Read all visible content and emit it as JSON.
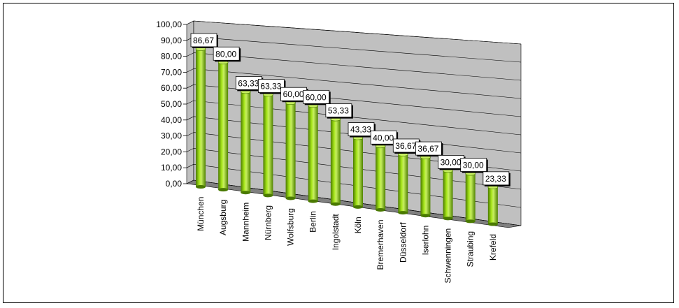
{
  "chart_data": {
    "type": "bar",
    "categories": [
      "München",
      "Augsburg",
      "Mannheim",
      "Nürnberg",
      "Wolfsburg",
      "Berlin",
      "Ingolstadt",
      "Köln",
      "Bremerhaven",
      "Düsseldorf",
      "Iserlohn",
      "Schwenningen",
      "Straubing",
      "Krefeld"
    ],
    "values": [
      86.67,
      80.0,
      63.33,
      63.33,
      60.0,
      60.0,
      53.33,
      43.33,
      40.0,
      36.67,
      36.67,
      30.0,
      30.0,
      23.33
    ],
    "value_labels": [
      "86,67",
      "80,00",
      "63,33",
      "63,33",
      "60,00",
      "60,00",
      "53,33",
      "43,33",
      "40,00",
      "36,67",
      "36,67",
      "30,00",
      "30,00",
      "23,33"
    ],
    "y_ticks": [
      "0,00",
      "10,00",
      "20,00",
      "30,00",
      "40,00",
      "50,00",
      "60,00",
      "70,00",
      "80,00",
      "90,00",
      "100,00"
    ],
    "ylim": [
      0,
      100
    ],
    "title": "",
    "xlabel": "",
    "ylabel": "",
    "grid": true,
    "legend": "none",
    "style": "3d-cylinder",
    "colors": {
      "bar": "#8fd400",
      "bar_dark": "#4a7a00",
      "bar_light": "#c8f060",
      "wall": "#c0c0c0",
      "floor": "#808080",
      "grid": "#000000"
    }
  }
}
